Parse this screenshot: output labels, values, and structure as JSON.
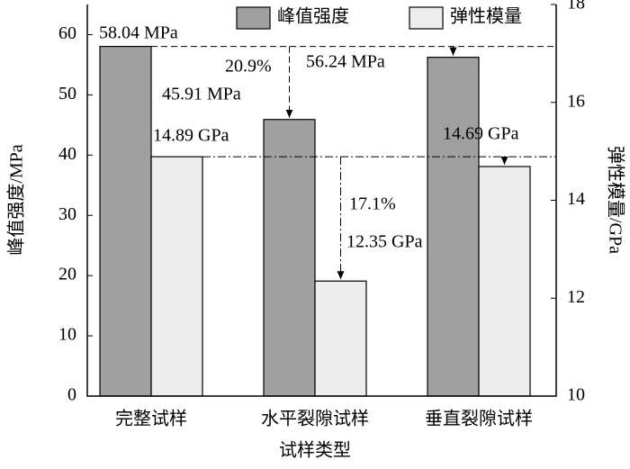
{
  "chart_data": {
    "type": "bar",
    "categories": [
      "完整试样",
      "水平裂隙试样",
      "垂直裂隙试样"
    ],
    "series": [
      {
        "name": "峰值强度",
        "color": "#a0a0a0",
        "values": [
          58.04,
          45.91,
          56.24
        ],
        "value_labels": [
          "58.04 MPa",
          "45.91 MPa",
          "56.24 MPa"
        ]
      },
      {
        "name": "弹性模量",
        "color": "#ececec",
        "axis": "y2",
        "values": [
          14.89,
          12.35,
          14.69
        ],
        "value_labels": [
          "14.89 GPa",
          "12.35 GPa",
          "14.69 GPa"
        ]
      }
    ],
    "xlabel": "试样类型",
    "ylabel": "峰值强度/MPa",
    "y2label": "弹性模量/GPa",
    "ylim": [
      0,
      65
    ],
    "yticks": [
      0,
      10,
      20,
      30,
      40,
      50,
      60
    ],
    "y2lim": [
      10,
      18
    ],
    "y2ticks": [
      10,
      12,
      14,
      16,
      18
    ],
    "annotations": [
      "20.9%",
      "17.1%"
    ],
    "legend": "top"
  }
}
